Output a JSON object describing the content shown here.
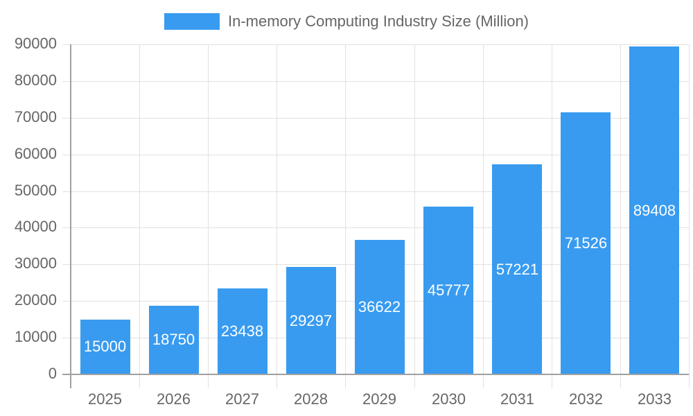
{
  "chart_data": {
    "type": "bar",
    "title": "",
    "legend": [
      "In-memory Computing Industry Size (Million)"
    ],
    "legend_position": "top",
    "categories": [
      "2025",
      "2026",
      "2027",
      "2028",
      "2029",
      "2030",
      "2031",
      "2032",
      "2033"
    ],
    "series": [
      {
        "name": "In-memory Computing Industry Size (Million)",
        "values": [
          15000,
          18750,
          23438,
          29297,
          36622,
          45777,
          57221,
          71526,
          89408
        ],
        "color": "#389bf0"
      }
    ],
    "xlabel": "",
    "ylabel": "",
    "ylim": [
      0,
      90000
    ],
    "yticks": [
      "0",
      "10000",
      "20000",
      "30000",
      "40000",
      "50000",
      "60000",
      "70000",
      "80000",
      "90000"
    ],
    "grid": true,
    "data_labels": true
  }
}
